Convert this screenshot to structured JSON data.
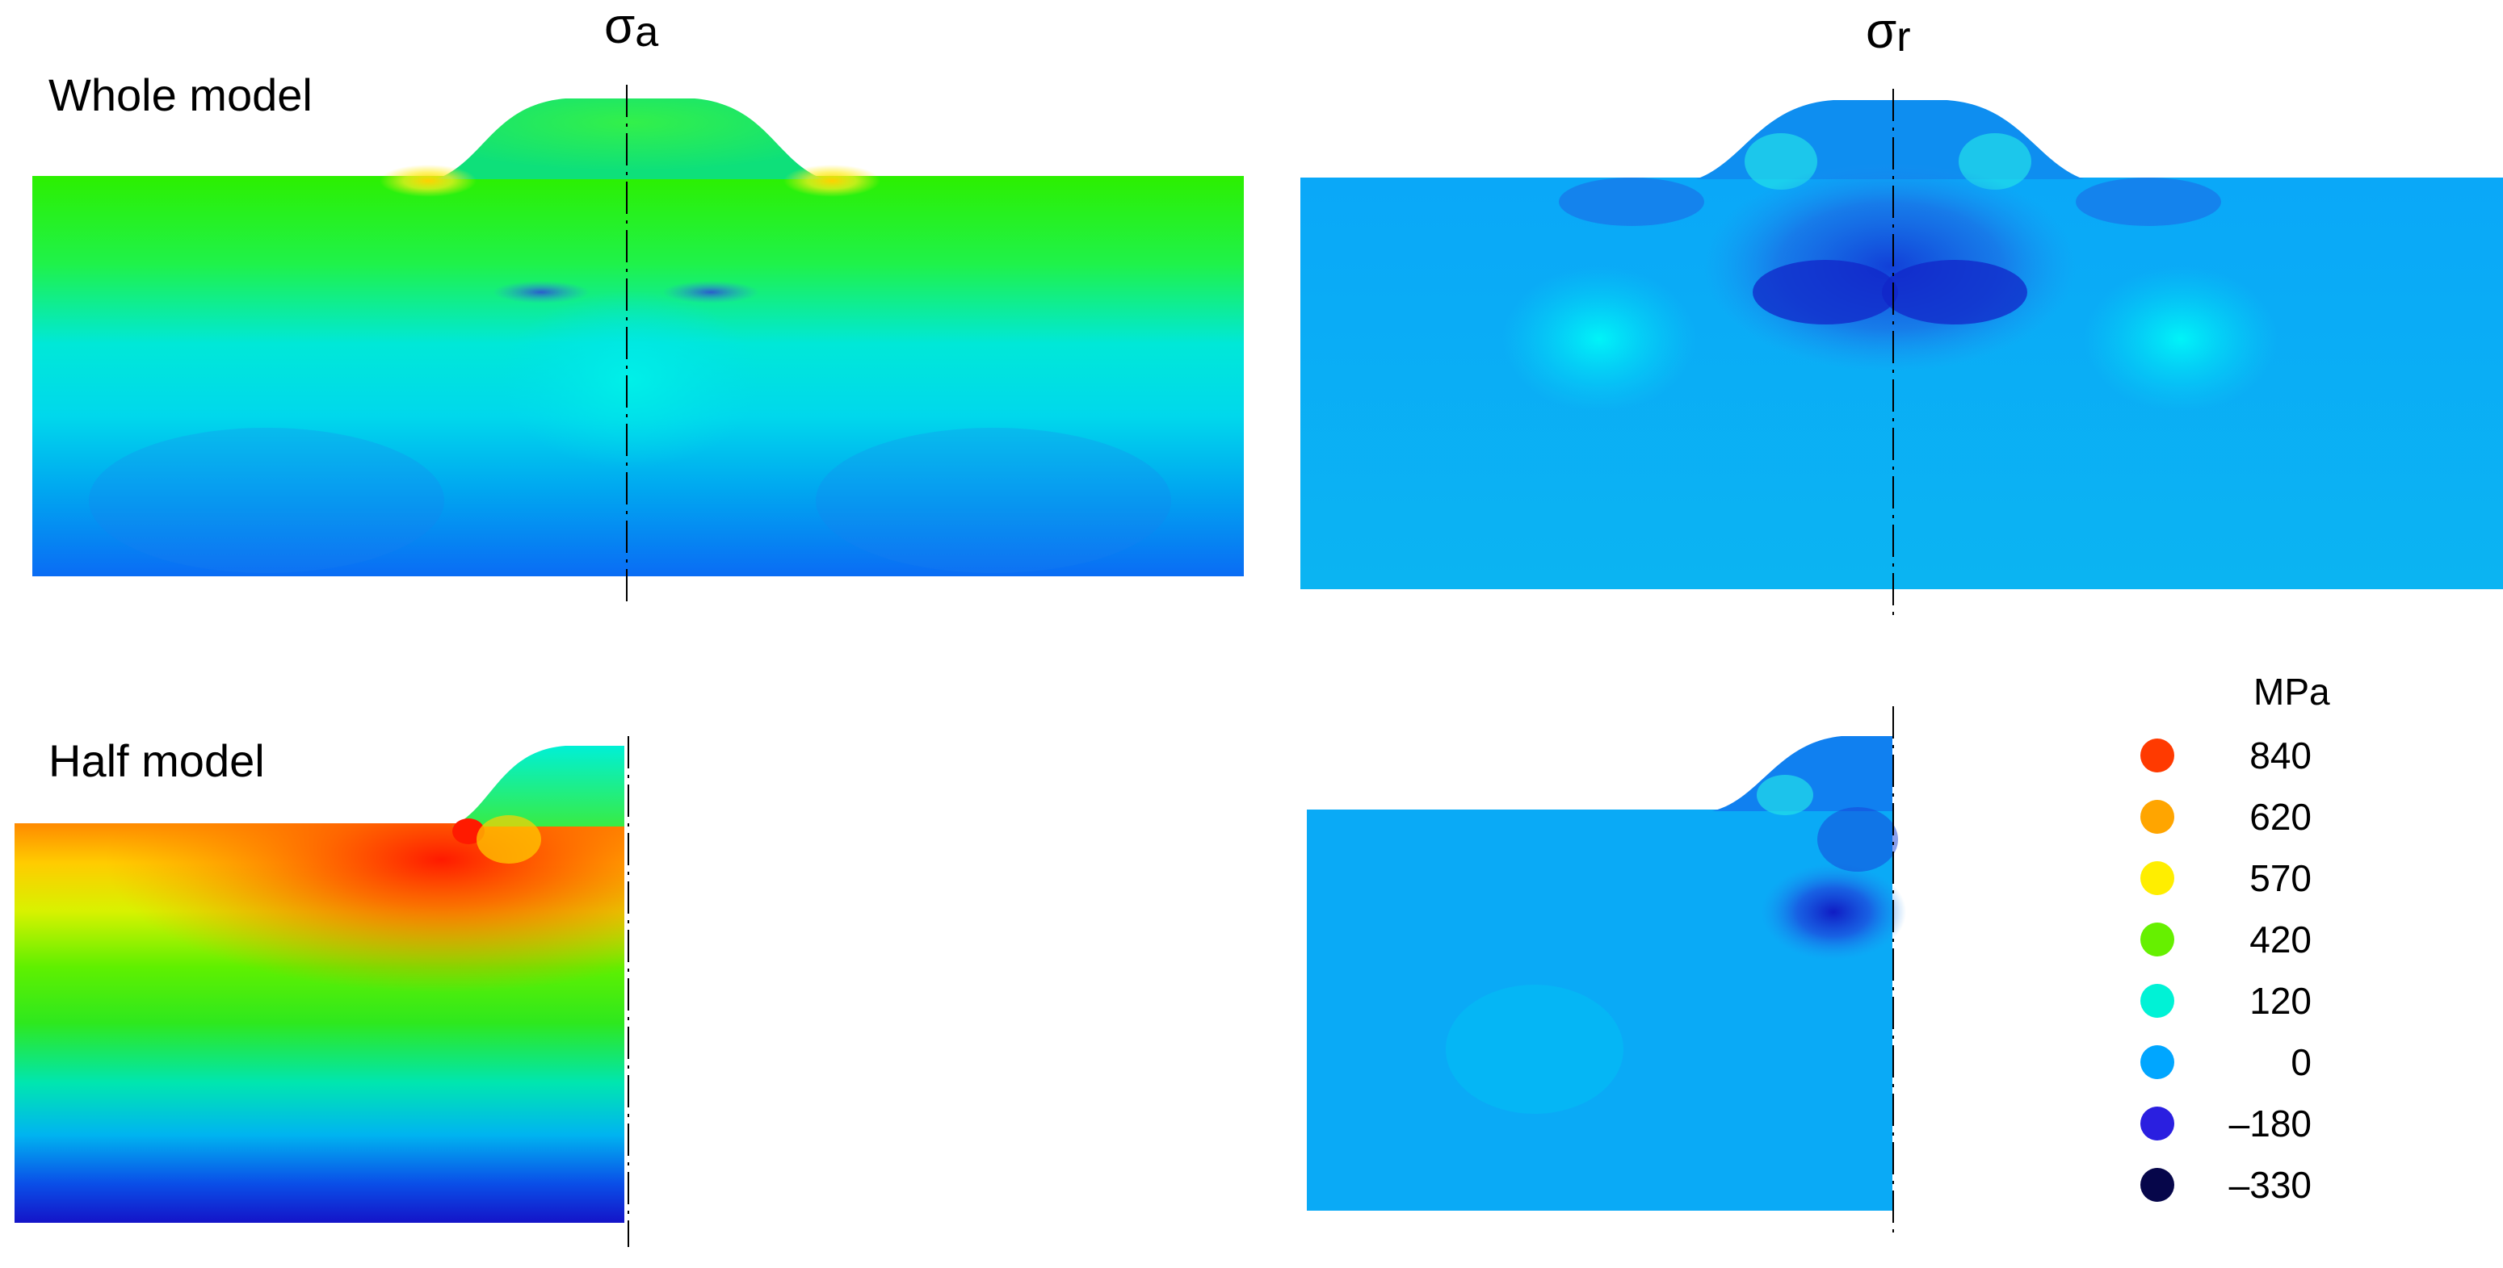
{
  "labels": {
    "sigma_a": "σ",
    "sigma_a_sub": "a",
    "sigma_r": "σ",
    "sigma_r_sub": "r",
    "whole_model": "Whole model",
    "half_model": "Half model"
  },
  "legend": {
    "unit": "MPa",
    "items": [
      {
        "value": "840",
        "color": "#ff3a00"
      },
      {
        "value": "620",
        "color": "#ffa500"
      },
      {
        "value": "570",
        "color": "#ffee00"
      },
      {
        "value": "420",
        "color": "#66f000"
      },
      {
        "value": "120",
        "color": "#00f2d6"
      },
      {
        "value": "0",
        "color": "#00a6ff"
      },
      {
        "value": "–180",
        "color": "#2a1fe0"
      },
      {
        "value": "–330",
        "color": "#06064a"
      }
    ]
  }
}
